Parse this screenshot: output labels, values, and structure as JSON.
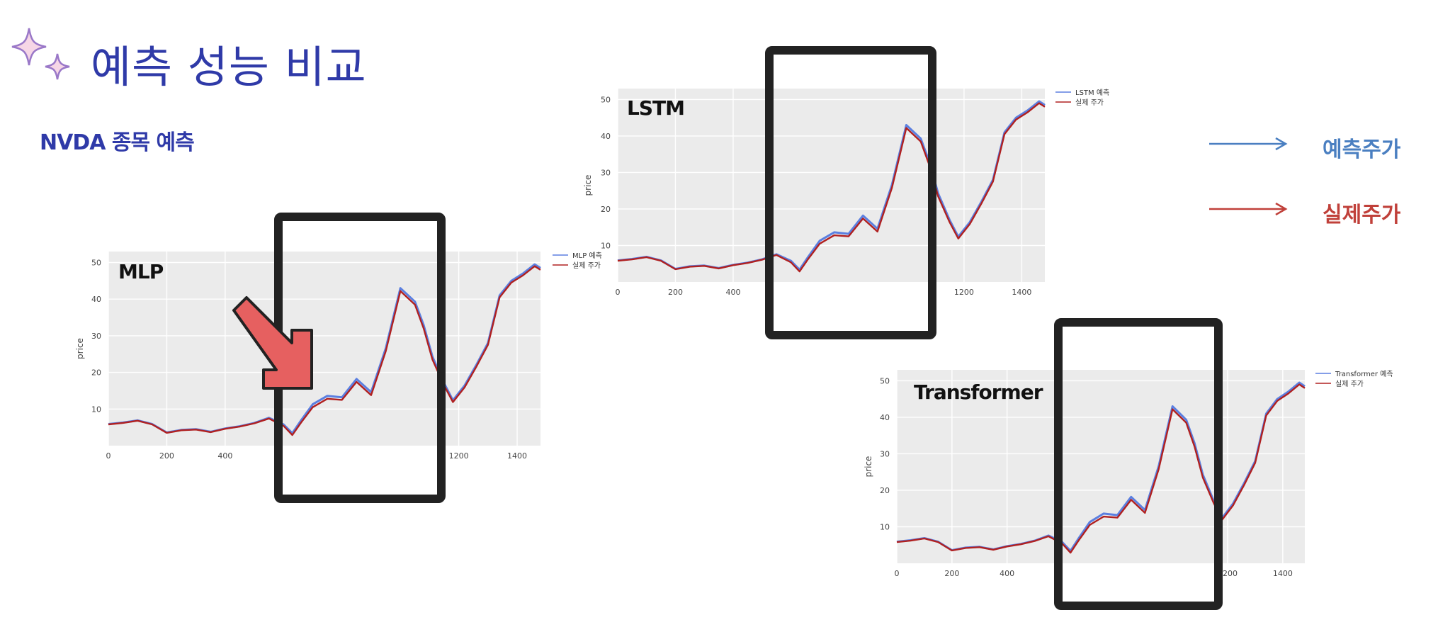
{
  "page": {
    "title": "예측 성능 비교",
    "subtitle": "NVDA 종목 예측",
    "icon": "sparkle-icon",
    "accent_color": "#2f3aa8"
  },
  "key_legend": [
    {
      "label": "예측주가",
      "color": "#4a7fc1"
    },
    {
      "label": "실제주가",
      "color": "#c0403a"
    }
  ],
  "chart_data": [
    {
      "type": "line",
      "model_label": "MLP",
      "ylabel": "price",
      "xticks": [
        0,
        200,
        400,
        1200,
        1400
      ],
      "yticks": [
        10,
        20,
        30,
        40,
        50
      ],
      "xlim": [
        0,
        1480
      ],
      "ylim": [
        0,
        53
      ],
      "grid": true,
      "legend_position": "right",
      "highlight_range": [
        565,
        1145
      ],
      "series": [
        {
          "name": "MLP 예측",
          "color": "#5b7fe0"
        },
        {
          "name": "실제 주가",
          "color": "#b02020"
        }
      ],
      "x": [
        0,
        50,
        100,
        150,
        200,
        250,
        300,
        350,
        400,
        450,
        500,
        550,
        600,
        630,
        660,
        700,
        750,
        800,
        850,
        900,
        950,
        1000,
        1050,
        1080,
        1110,
        1150,
        1180,
        1220,
        1260,
        1300,
        1340,
        1380,
        1420,
        1460,
        1480
      ],
      "actual": [
        5.8,
        6.2,
        6.8,
        5.8,
        3.5,
        4.2,
        4.4,
        3.7,
        4.6,
        5.2,
        6.1,
        7.4,
        5.4,
        2.9,
        6.3,
        10.5,
        12.8,
        12.5,
        17.4,
        13.8,
        25.8,
        42.2,
        38.5,
        32.0,
        23.5,
        16.4,
        11.9,
        15.9,
        21.5,
        27.5,
        40.5,
        44.5,
        46.5,
        49.0,
        48.0
      ],
      "predicted": [
        5.9,
        6.3,
        6.9,
        5.9,
        3.6,
        4.3,
        4.5,
        3.8,
        4.7,
        5.3,
        6.2,
        7.6,
        5.8,
        3.4,
        6.9,
        11.3,
        13.6,
        13.2,
        18.2,
        14.6,
        26.6,
        43.0,
        39.3,
        32.9,
        24.3,
        17.0,
        12.4,
        16.4,
        22.0,
        28.0,
        41.0,
        45.0,
        47.0,
        49.5,
        48.5
      ]
    },
    {
      "type": "line",
      "model_label": "LSTM",
      "ylabel": "price",
      "xticks": [
        0,
        200,
        400,
        1200,
        1400
      ],
      "yticks": [
        10,
        20,
        30,
        40,
        50
      ],
      "xlim": [
        0,
        1480
      ],
      "ylim": [
        0,
        53
      ],
      "grid": true,
      "legend_position": "right",
      "highlight_range": [
        535,
        1075
      ],
      "series": [
        {
          "name": "LSTM 예측",
          "color": "#5b7fe0"
        },
        {
          "name": "실제 주가",
          "color": "#b02020"
        }
      ],
      "x": [
        0,
        50,
        100,
        150,
        200,
        250,
        300,
        350,
        400,
        450,
        500,
        550,
        600,
        630,
        660,
        700,
        750,
        800,
        850,
        900,
        950,
        1000,
        1050,
        1080,
        1110,
        1150,
        1180,
        1220,
        1260,
        1300,
        1340,
        1380,
        1420,
        1460,
        1480
      ],
      "actual": [
        5.8,
        6.2,
        6.8,
        5.8,
        3.5,
        4.2,
        4.4,
        3.7,
        4.6,
        5.2,
        6.1,
        7.4,
        5.4,
        2.9,
        6.3,
        10.5,
        12.8,
        12.5,
        17.4,
        13.8,
        25.8,
        42.2,
        38.5,
        32.0,
        23.5,
        16.4,
        11.9,
        15.9,
        21.5,
        27.5,
        40.5,
        44.5,
        46.5,
        49.0,
        48.0
      ],
      "predicted": [
        5.9,
        6.3,
        6.9,
        5.9,
        3.6,
        4.3,
        4.5,
        3.8,
        4.7,
        5.3,
        6.2,
        7.6,
        5.8,
        3.4,
        6.9,
        11.3,
        13.6,
        13.2,
        18.2,
        14.6,
        26.6,
        43.0,
        39.3,
        32.9,
        24.3,
        17.0,
        12.4,
        16.4,
        22.0,
        28.0,
        41.0,
        45.0,
        47.0,
        49.5,
        48.5
      ]
    },
    {
      "type": "line",
      "model_label": "Transformer",
      "ylabel": "price",
      "xticks": [
        0,
        200,
        400,
        1200,
        1400
      ],
      "yticks": [
        10,
        20,
        30,
        40,
        50
      ],
      "xlim": [
        0,
        1480
      ],
      "ylim": [
        0,
        53
      ],
      "grid": true,
      "legend_position": "right",
      "highlight_range": [
        565,
        1130
      ],
      "series": [
        {
          "name": "Transformer 예측",
          "color": "#5b7fe0"
        },
        {
          "name": "실제 주가",
          "color": "#b02020"
        }
      ],
      "x": [
        0,
        50,
        100,
        150,
        200,
        250,
        300,
        350,
        400,
        450,
        500,
        550,
        600,
        630,
        660,
        700,
        750,
        800,
        850,
        900,
        950,
        1000,
        1050,
        1080,
        1110,
        1150,
        1180,
        1220,
        1260,
        1300,
        1340,
        1380,
        1420,
        1460,
        1480
      ],
      "actual": [
        5.8,
        6.2,
        6.8,
        5.8,
        3.5,
        4.2,
        4.4,
        3.7,
        4.6,
        5.2,
        6.1,
        7.4,
        5.4,
        2.9,
        6.3,
        10.5,
        12.8,
        12.5,
        17.4,
        13.8,
        25.8,
        42.2,
        38.5,
        32.0,
        23.5,
        16.4,
        11.9,
        15.9,
        21.5,
        27.5,
        40.5,
        44.5,
        46.5,
        49.0,
        48.0
      ],
      "predicted": [
        5.9,
        6.3,
        6.9,
        5.9,
        3.6,
        4.3,
        4.5,
        3.8,
        4.7,
        5.3,
        6.2,
        7.6,
        5.8,
        3.4,
        6.9,
        11.3,
        13.6,
        13.2,
        18.2,
        14.6,
        26.6,
        43.0,
        39.3,
        32.9,
        24.3,
        17.0,
        12.4,
        16.4,
        22.0,
        28.0,
        41.0,
        45.0,
        47.0,
        49.5,
        48.5
      ]
    }
  ]
}
